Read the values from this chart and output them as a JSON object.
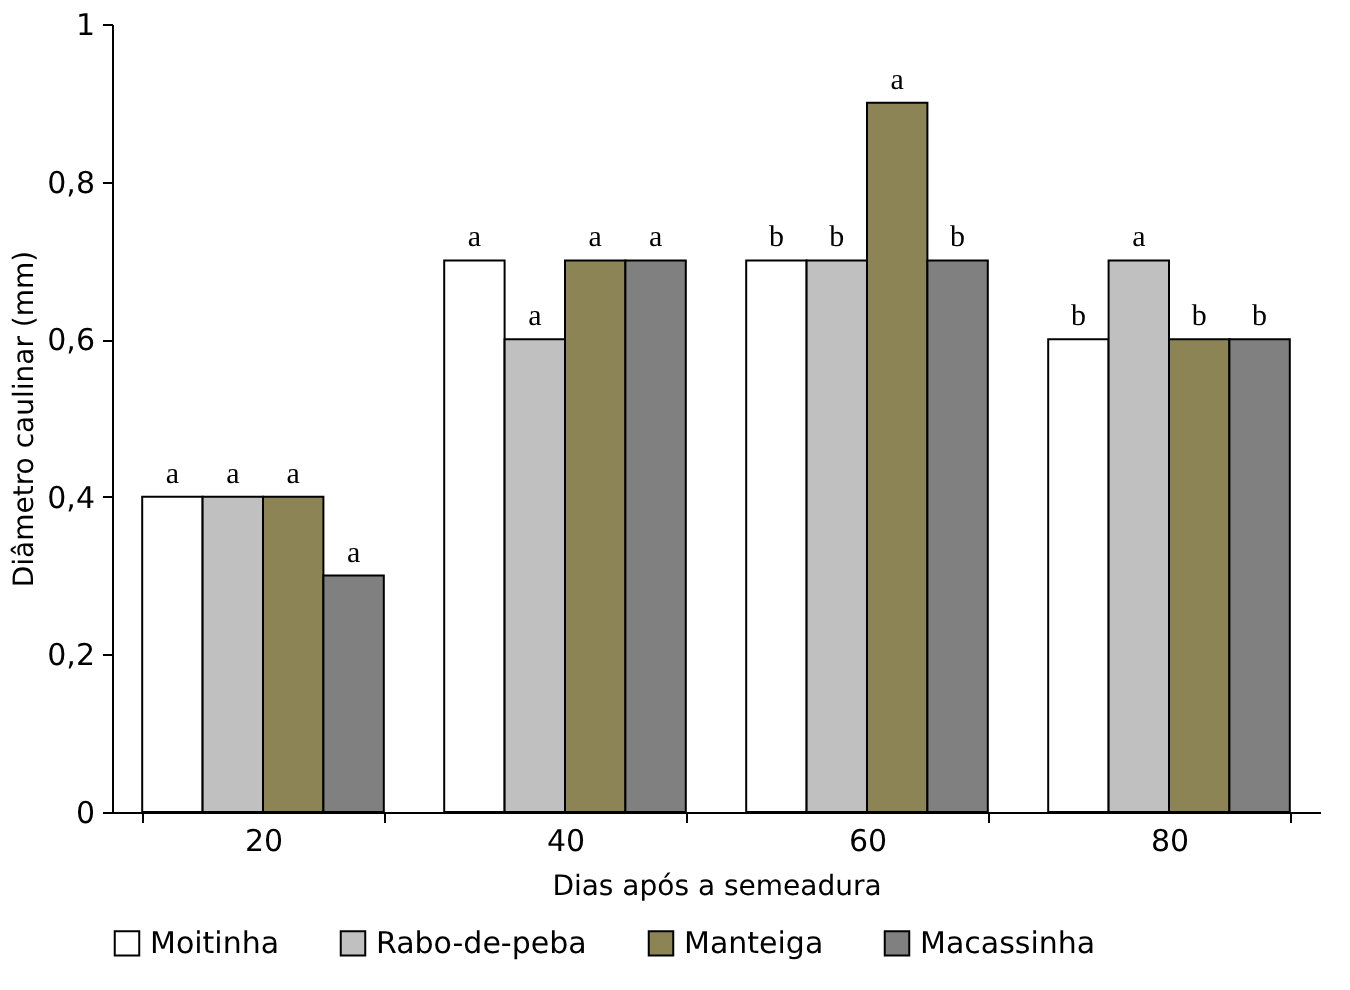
{
  "chart_data": {
    "type": "bar",
    "xlabel": "Dias após a semeadura",
    "ylabel": "Diâmetro caulinar (mm)",
    "categories": [
      "20",
      "40",
      "60",
      "80"
    ],
    "series": [
      {
        "name": "Moitinha",
        "color": "#ffffff",
        "values": [
          0.4,
          0.7,
          0.7,
          0.6
        ],
        "value_labels": [
          "a",
          "a",
          "b",
          "b"
        ]
      },
      {
        "name": "Rabo-de-peba",
        "color": "#c0c0c0",
        "values": [
          0.4,
          0.6,
          0.7,
          0.7
        ],
        "value_labels": [
          "a",
          "a",
          "b",
          "a"
        ]
      },
      {
        "name": "Manteiga",
        "color": "#8c8454",
        "values": [
          0.4,
          0.7,
          0.9,
          0.6
        ],
        "value_labels": [
          "a",
          "a",
          "a",
          "b"
        ]
      },
      {
        "name": "Macassinha",
        "color": "#808080",
        "values": [
          0.3,
          0.7,
          0.7,
          0.6
        ],
        "value_labels": [
          "a",
          "a",
          "b",
          "b"
        ]
      }
    ],
    "ylim": [
      0,
      1
    ],
    "yticks": [
      0,
      {
        "value": 0.2,
        "label": "0,2"
      },
      {
        "value": 0.4,
        "label": "0,4"
      },
      {
        "value": 0.6,
        "label": "0,6"
      },
      {
        "value": 0.8,
        "label": "0,8"
      },
      1
    ],
    "legend": "bottom",
    "grid": false
  }
}
